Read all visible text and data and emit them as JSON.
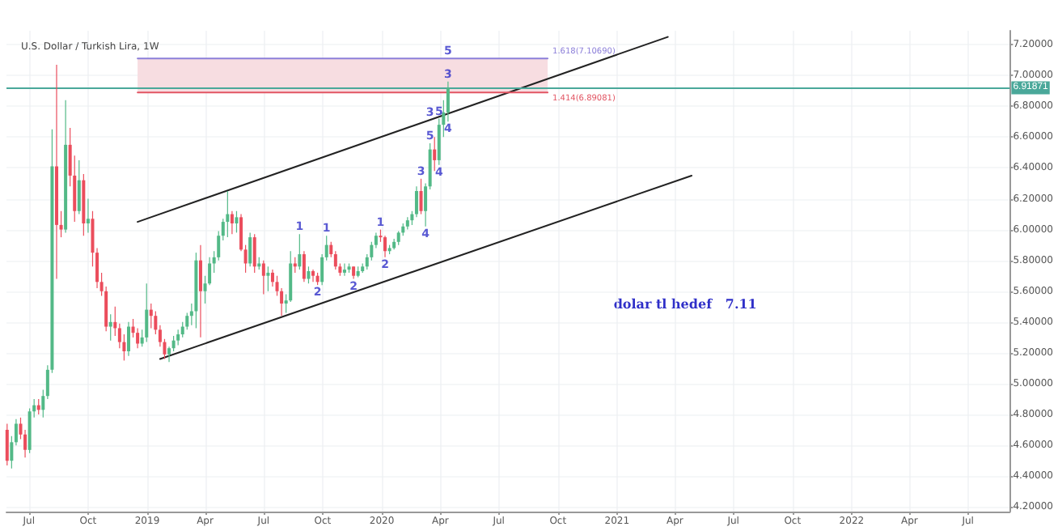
{
  "chart_data": {
    "type": "candlestick",
    "title": "U.S. Dollar / Turkish Lira, 1W",
    "x": [
      "2018-05-28",
      "2018-06-04",
      "2018-06-11",
      "2018-06-18",
      "2018-06-25",
      "2018-07-02",
      "2018-07-09",
      "2018-07-16",
      "2018-07-23",
      "2018-07-30",
      "2018-08-06",
      "2018-08-13",
      "2018-08-20",
      "2018-08-27",
      "2018-09-03",
      "2018-09-10",
      "2018-09-17",
      "2018-09-24",
      "2018-10-01",
      "2018-10-08",
      "2018-10-15",
      "2018-10-22",
      "2018-10-29",
      "2018-11-05",
      "2018-11-12",
      "2018-11-19",
      "2018-11-26",
      "2018-12-03",
      "2018-12-10",
      "2018-12-17",
      "2018-12-24",
      "2018-12-31",
      "2019-01-07",
      "2019-01-14",
      "2019-01-21",
      "2019-01-28",
      "2019-02-04",
      "2019-02-11",
      "2019-02-18",
      "2019-02-25",
      "2019-03-04",
      "2019-03-11",
      "2019-03-18",
      "2019-03-25",
      "2019-04-01",
      "2019-04-08",
      "2019-04-15",
      "2019-04-22",
      "2019-04-29",
      "2019-05-06",
      "2019-05-13",
      "2019-05-20",
      "2019-05-27",
      "2019-06-03",
      "2019-06-10",
      "2019-06-17",
      "2019-06-24",
      "2019-07-01",
      "2019-07-08",
      "2019-07-15",
      "2019-07-22",
      "2019-07-29",
      "2019-08-05",
      "2019-08-12",
      "2019-08-19",
      "2019-08-26",
      "2019-09-02",
      "2019-09-09",
      "2019-09-16",
      "2019-09-23",
      "2019-09-30",
      "2019-10-07",
      "2019-10-14",
      "2019-10-21",
      "2019-10-28",
      "2019-11-04",
      "2019-11-11",
      "2019-11-18",
      "2019-11-25",
      "2019-12-02",
      "2019-12-09",
      "2019-12-16",
      "2019-12-23",
      "2019-12-30",
      "2020-01-06",
      "2020-01-13",
      "2020-01-20",
      "2020-01-27",
      "2020-02-03",
      "2020-02-10",
      "2020-02-17",
      "2020-02-24",
      "2020-03-02",
      "2020-03-09",
      "2020-03-16",
      "2020-03-23",
      "2020-03-30",
      "2020-04-06",
      "2020-04-13"
    ],
    "ohlc": [
      [
        4.7,
        4.74,
        4.47,
        4.5
      ],
      [
        4.5,
        4.66,
        4.45,
        4.62
      ],
      [
        4.62,
        4.77,
        4.6,
        4.74
      ],
      [
        4.74,
        4.78,
        4.64,
        4.67
      ],
      [
        4.67,
        4.7,
        4.52,
        4.57
      ],
      [
        4.57,
        4.84,
        4.55,
        4.82
      ],
      [
        4.82,
        4.9,
        4.78,
        4.86
      ],
      [
        4.86,
        4.9,
        4.8,
        4.83
      ],
      [
        4.83,
        4.96,
        4.78,
        4.92
      ],
      [
        4.92,
        5.12,
        4.9,
        5.09
      ],
      [
        5.09,
        6.65,
        5.07,
        6.41
      ],
      [
        6.41,
        7.07,
        5.68,
        6.03
      ],
      [
        6.03,
        6.12,
        5.95,
        6.0
      ],
      [
        6.0,
        6.84,
        5.98,
        6.55
      ],
      [
        6.55,
        6.66,
        6.28,
        6.35
      ],
      [
        6.35,
        6.48,
        6.05,
        6.12
      ],
      [
        6.12,
        6.45,
        6.1,
        6.32
      ],
      [
        6.32,
        6.36,
        5.96,
        6.04
      ],
      [
        6.04,
        6.2,
        5.98,
        6.07
      ],
      [
        6.07,
        6.12,
        5.76,
        5.85
      ],
      [
        5.85,
        5.88,
        5.62,
        5.66
      ],
      [
        5.66,
        5.72,
        5.57,
        5.6
      ],
      [
        5.6,
        5.63,
        5.34,
        5.37
      ],
      [
        5.37,
        5.45,
        5.28,
        5.4
      ],
      [
        5.4,
        5.5,
        5.31,
        5.36
      ],
      [
        5.36,
        5.39,
        5.23,
        5.27
      ],
      [
        5.27,
        5.32,
        5.15,
        5.21
      ],
      [
        5.21,
        5.4,
        5.18,
        5.37
      ],
      [
        5.37,
        5.42,
        5.3,
        5.33
      ],
      [
        5.33,
        5.36,
        5.23,
        5.26
      ],
      [
        5.26,
        5.35,
        5.24,
        5.3
      ],
      [
        5.3,
        5.65,
        5.27,
        5.48
      ],
      [
        5.48,
        5.52,
        5.36,
        5.44
      ],
      [
        5.44,
        5.47,
        5.32,
        5.35
      ],
      [
        5.35,
        5.38,
        5.24,
        5.27
      ],
      [
        5.27,
        5.29,
        5.16,
        5.19
      ],
      [
        5.19,
        5.24,
        5.14,
        5.23
      ],
      [
        5.23,
        5.31,
        5.21,
        5.28
      ],
      [
        5.28,
        5.35,
        5.25,
        5.32
      ],
      [
        5.32,
        5.4,
        5.3,
        5.37
      ],
      [
        5.37,
        5.46,
        5.35,
        5.44
      ],
      [
        5.44,
        5.52,
        5.38,
        5.47
      ],
      [
        5.47,
        5.85,
        5.36,
        5.8
      ],
      [
        5.8,
        5.9,
        5.3,
        5.6
      ],
      [
        5.6,
        5.7,
        5.52,
        5.65
      ],
      [
        5.65,
        5.82,
        5.64,
        5.78
      ],
      [
        5.78,
        5.86,
        5.72,
        5.82
      ],
      [
        5.82,
        5.99,
        5.8,
        5.96
      ],
      [
        5.96,
        6.07,
        5.93,
        6.05
      ],
      [
        6.05,
        6.25,
        5.95,
        6.1
      ],
      [
        6.1,
        6.12,
        5.97,
        6.04
      ],
      [
        6.04,
        6.12,
        5.98,
        6.08
      ],
      [
        6.08,
        6.1,
        5.86,
        5.87
      ],
      [
        5.87,
        5.9,
        5.72,
        5.78
      ],
      [
        5.78,
        5.98,
        5.76,
        5.95
      ],
      [
        5.95,
        5.97,
        5.72,
        5.76
      ],
      [
        5.76,
        5.82,
        5.74,
        5.78
      ],
      [
        5.78,
        5.8,
        5.58,
        5.7
      ],
      [
        5.7,
        5.76,
        5.6,
        5.72
      ],
      [
        5.72,
        5.74,
        5.63,
        5.66
      ],
      [
        5.66,
        5.7,
        5.57,
        5.6
      ],
      [
        5.6,
        5.62,
        5.44,
        5.52
      ],
      [
        5.52,
        5.58,
        5.46,
        5.54
      ],
      [
        5.54,
        5.86,
        5.53,
        5.78
      ],
      [
        5.78,
        5.82,
        5.72,
        5.76
      ],
      [
        5.76,
        5.97,
        5.74,
        5.84
      ],
      [
        5.84,
        5.86,
        5.66,
        5.68
      ],
      [
        5.68,
        5.76,
        5.65,
        5.73
      ],
      [
        5.73,
        5.74,
        5.66,
        5.7
      ],
      [
        5.7,
        5.72,
        5.64,
        5.66
      ],
      [
        5.66,
        5.84,
        5.64,
        5.82
      ],
      [
        5.82,
        5.96,
        5.8,
        5.9
      ],
      [
        5.9,
        5.92,
        5.82,
        5.84
      ],
      [
        5.84,
        5.86,
        5.74,
        5.76
      ],
      [
        5.76,
        5.78,
        5.7,
        5.72
      ],
      [
        5.72,
        5.78,
        5.7,
        5.74
      ],
      [
        5.74,
        5.78,
        5.72,
        5.76
      ],
      [
        5.76,
        5.76,
        5.68,
        5.7
      ],
      [
        5.7,
        5.76,
        5.69,
        5.73
      ],
      [
        5.73,
        5.78,
        5.72,
        5.76
      ],
      [
        5.76,
        5.84,
        5.74,
        5.82
      ],
      [
        5.82,
        5.92,
        5.8,
        5.9
      ],
      [
        5.9,
        5.98,
        5.88,
        5.96
      ],
      [
        5.96,
        6.0,
        5.92,
        5.95
      ],
      [
        5.95,
        5.96,
        5.82,
        5.86
      ],
      [
        5.86,
        5.9,
        5.84,
        5.88
      ],
      [
        5.88,
        5.94,
        5.87,
        5.92
      ],
      [
        5.92,
        5.99,
        5.9,
        5.98
      ],
      [
        5.98,
        6.04,
        5.96,
        6.02
      ],
      [
        6.02,
        6.08,
        6.0,
        6.06
      ],
      [
        6.06,
        6.12,
        6.03,
        6.1
      ],
      [
        6.1,
        6.28,
        6.08,
        6.25
      ],
      [
        6.25,
        6.33,
        6.1,
        6.12
      ],
      [
        6.12,
        6.3,
        6.02,
        6.28
      ],
      [
        6.28,
        6.56,
        6.26,
        6.52
      ],
      [
        6.52,
        6.6,
        6.38,
        6.45
      ],
      [
        6.45,
        6.72,
        6.42,
        6.68
      ],
      [
        6.68,
        6.84,
        6.6,
        6.76
      ],
      [
        6.76,
        6.96,
        6.7,
        6.91871
      ]
    ],
    "colors": [
      "#eb4d5c",
      "#53b987",
      "#53b987",
      "#eb4d5c",
      "#eb4d5c",
      "#53b987",
      "#53b987",
      "#eb4d5c",
      "#53b987",
      "#53b987",
      "#53b987",
      "#eb4d5c",
      "#eb4d5c",
      "#53b987",
      "#eb4d5c",
      "#eb4d5c",
      "#53b987",
      "#eb4d5c",
      "#53b987",
      "#eb4d5c",
      "#eb4d5c",
      "#eb4d5c",
      "#eb4d5c",
      "#53b987",
      "#eb4d5c",
      "#eb4d5c",
      "#eb4d5c",
      "#53b987",
      "#eb4d5c",
      "#eb4d5c",
      "#53b987",
      "#53b987",
      "#eb4d5c",
      "#eb4d5c",
      "#eb4d5c",
      "#eb4d5c",
      "#53b987",
      "#53b987",
      "#53b987",
      "#53b987",
      "#53b987",
      "#53b987",
      "#53b987",
      "#eb4d5c",
      "#53b987",
      "#53b987",
      "#53b987",
      "#53b987",
      "#53b987",
      "#53b987",
      "#eb4d5c",
      "#53b987",
      "#eb4d5c",
      "#eb4d5c",
      "#53b987",
      "#eb4d5c",
      "#53b987",
      "#eb4d5c",
      "#53b987",
      "#eb4d5c",
      "#eb4d5c",
      "#eb4d5c",
      "#53b987",
      "#53b987",
      "#eb4d5c",
      "#53b987",
      "#eb4d5c",
      "#53b987",
      "#eb4d5c",
      "#eb4d5c",
      "#53b987",
      "#53b987",
      "#eb4d5c",
      "#eb4d5c",
      "#eb4d5c",
      "#53b987",
      "#53b987",
      "#eb4d5c",
      "#53b987",
      "#53b987",
      "#53b987",
      "#53b987",
      "#53b987",
      "#eb4d5c",
      "#eb4d5c",
      "#53b987",
      "#53b987",
      "#53b987",
      "#53b987",
      "#53b987",
      "#53b987",
      "#53b987",
      "#eb4d5c",
      "#53b987",
      "#53b987",
      "#eb4d5c",
      "#53b987",
      "#53b987",
      "#53b987"
    ],
    "series": [
      {
        "type": "line",
        "color": "#222222",
        "x": [
          "2018-12-17",
          "2021-03-21"
        ],
        "values": [
          6.05,
          7.25
        ]
      },
      {
        "type": "line",
        "color": "#222222",
        "x": [
          "2019-01-21",
          "2021-04-27"
        ],
        "values": [
          5.16,
          6.35
        ]
      },
      {
        "type": "line",
        "name": "1.618(7.10690)",
        "color": "#8c7fd9",
        "x": [
          "2018-12-17",
          "2020-09-15"
        ],
        "values": [
          7.11,
          7.11
        ]
      },
      {
        "type": "line",
        "name": "1.414(6.89081)",
        "color": "#e25563",
        "x": [
          "2018-12-17",
          "2020-09-15"
        ],
        "values": [
          6.89,
          6.89
        ]
      }
    ],
    "xlim": [
      "2018-05-27",
      "2022-09-04"
    ],
    "xticks": [
      {
        "value": "2018-07-01",
        "label": "Jul"
      },
      {
        "value": "2018-10-01",
        "label": "Oct"
      },
      {
        "value": "2019-01-01",
        "label": "2019"
      },
      {
        "value": "2019-04-01",
        "label": "Apr"
      },
      {
        "value": "2019-07-01",
        "label": "Jul"
      },
      {
        "value": "2019-10-01",
        "label": "Oct"
      },
      {
        "value": "2020-01-01",
        "label": "2020"
      },
      {
        "value": "2020-04-01",
        "label": "Apr"
      },
      {
        "value": "2020-07-01",
        "label": "Jul"
      },
      {
        "value": "2020-10-01",
        "label": "Oct"
      },
      {
        "value": "2021-01-01",
        "label": "2021"
      },
      {
        "value": "2021-04-01",
        "label": "Apr"
      },
      {
        "value": "2021-07-01",
        "label": "Jul"
      },
      {
        "value": "2021-10-01",
        "label": "Oct"
      },
      {
        "value": "2022-01-01",
        "label": "2022"
      },
      {
        "value": "2022-04-01",
        "label": "Apr"
      },
      {
        "value": "2022-07-01",
        "label": "Jul"
      }
    ],
    "ylim": [
      4.17,
      7.29
    ],
    "yticks": [
      {
        "value": 4.2,
        "label": "4.20000"
      },
      {
        "value": 4.4,
        "label": "4.40000"
      },
      {
        "value": 4.6,
        "label": "4.60000"
      },
      {
        "value": 4.8,
        "label": "4.80000"
      },
      {
        "value": 5.0,
        "label": "5.00000"
      },
      {
        "value": 5.2,
        "label": "5.20000"
      },
      {
        "value": 5.4,
        "label": "5.40000"
      },
      {
        "value": 5.6,
        "label": "5.60000"
      },
      {
        "value": 5.8,
        "label": "5.80000"
      },
      {
        "value": 6.0,
        "label": "6.00000"
      },
      {
        "value": 6.2,
        "label": "6.20000"
      },
      {
        "value": 6.4,
        "label": "6.40000"
      },
      {
        "value": 6.6,
        "label": "6.60000"
      },
      {
        "value": 6.8,
        "label": "6.80000"
      },
      {
        "value": 7.0,
        "label": "7.00000"
      },
      {
        "value": 7.2,
        "label": "7.20000"
      }
    ],
    "grid": true,
    "bands": [
      {
        "axis": "y",
        "from": 6.89,
        "to": 7.11,
        "color": "#f7dde1"
      }
    ],
    "ref_lines": [
      {
        "axis": "y",
        "value": 6.91871,
        "label": "6.91871",
        "color": "#4aa89a"
      }
    ],
    "annotations": [
      {
        "text": "1",
        "x": "2019-08-26",
        "y": 5.97
      },
      {
        "text": "2",
        "x": "2019-09-23",
        "y": 5.64
      },
      {
        "text": "1",
        "x": "2019-10-07",
        "y": 5.96
      },
      {
        "text": "2",
        "x": "2019-11-18",
        "y": 5.68
      },
      {
        "text": "1",
        "x": "2019-12-30",
        "y": 6.0
      },
      {
        "text": "2",
        "x": "2020-01-06",
        "y": 5.82
      },
      {
        "text": "3",
        "x": "2020-03-02",
        "y": 6.33
      },
      {
        "text": "4",
        "x": "2020-03-09",
        "y": 6.02
      },
      {
        "text": "5",
        "x": "2020-03-16",
        "y": 6.56
      },
      {
        "text": "3",
        "x": "2020-03-16",
        "y": 6.71
      },
      {
        "text": "5",
        "x": "2020-03-30",
        "y": 6.72
      },
      {
        "text": "4",
        "x": "2020-03-30",
        "y": 6.42
      },
      {
        "text": "3",
        "x": "2020-04-13",
        "y": 6.96
      },
      {
        "text": "4",
        "x": "2020-04-13",
        "y": 6.7
      },
      {
        "text": "5",
        "x": "2020-04-13",
        "y": 7.11
      },
      "dolar tl hedef   7.11"
    ]
  }
}
